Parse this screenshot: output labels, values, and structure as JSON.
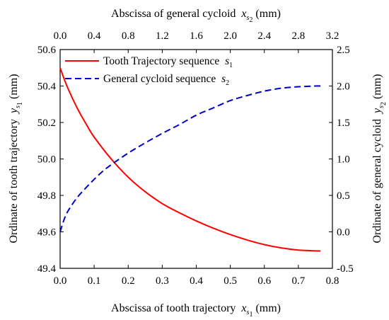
{
  "chart_data": {
    "type": "line",
    "axes": {
      "bottom": {
        "label": "Abscissa of tooth trajectory",
        "var": "x",
        "var_sub": "s",
        "var_sub2": "1",
        "unit": "(mm)",
        "range": [
          0.0,
          0.8
        ],
        "ticks": [
          "0.0",
          "0.1",
          "0.2",
          "0.3",
          "0.4",
          "0.5",
          "0.6",
          "0.7",
          "0.8"
        ]
      },
      "left": {
        "label": "Ordinate of tooth trajectory",
        "var": "y",
        "var_sub": "s",
        "var_sub2": "1",
        "unit": "(mm)",
        "range": [
          49.4,
          50.6
        ],
        "ticks": [
          "49.4",
          "49.6",
          "49.8",
          "50.0",
          "50.2",
          "50.4",
          "50.6"
        ]
      },
      "top": {
        "label": "Abscissa of general cycloid",
        "var": "x",
        "var_sub": "s",
        "var_sub2": "2",
        "unit": "(mm)",
        "range": [
          0.0,
          3.2
        ],
        "ticks": [
          "0.0",
          "0.4",
          "0.8",
          "1.2",
          "1.6",
          "2.0",
          "2.4",
          "2.8",
          "3.2"
        ]
      },
      "right": {
        "label": "Ordinate of general cycloid",
        "var": "y",
        "var_sub": "s",
        "var_sub2": "2",
        "unit": "(mm)",
        "range": [
          -0.5,
          2.5
        ],
        "ticks": [
          "-0.5",
          "0.0",
          "0.5",
          "1.0",
          "1.5",
          "2.0",
          "2.5"
        ]
      }
    },
    "series": [
      {
        "name": "Tooth Trajectory sequence",
        "name_var": "s",
        "name_sub": "1",
        "color": "#ff0000",
        "style": "solid",
        "axes": [
          "bottom",
          "left"
        ],
        "x": [
          0.0,
          0.02,
          0.05,
          0.08,
          0.1,
          0.15,
          0.2,
          0.25,
          0.3,
          0.35,
          0.4,
          0.45,
          0.5,
          0.55,
          0.6,
          0.65,
          0.7,
          0.765
        ],
        "y": [
          50.5,
          50.4,
          50.28,
          50.18,
          50.12,
          50.0,
          49.9,
          49.82,
          49.755,
          49.705,
          49.66,
          49.62,
          49.585,
          49.555,
          49.53,
          49.512,
          49.5,
          49.495
        ]
      },
      {
        "name": "General cycloid sequence",
        "name_var": "s",
        "name_sub": "2",
        "color": "#0000cc",
        "style": "dashed",
        "axes": [
          "top",
          "right"
        ],
        "x": [
          0.0,
          0.05,
          0.1,
          0.2,
          0.3,
          0.4,
          0.5,
          0.6,
          0.8,
          1.0,
          1.2,
          1.4,
          1.6,
          1.8,
          2.0,
          2.2,
          2.4,
          2.6,
          2.8,
          3.0,
          3.07
        ],
        "y": [
          0.0,
          0.18,
          0.3,
          0.47,
          0.6,
          0.72,
          0.83,
          0.92,
          1.08,
          1.22,
          1.35,
          1.47,
          1.6,
          1.7,
          1.8,
          1.87,
          1.93,
          1.97,
          1.99,
          2.0,
          2.0
        ]
      }
    ],
    "legend": {
      "placement": "top-left"
    },
    "grid": false
  }
}
